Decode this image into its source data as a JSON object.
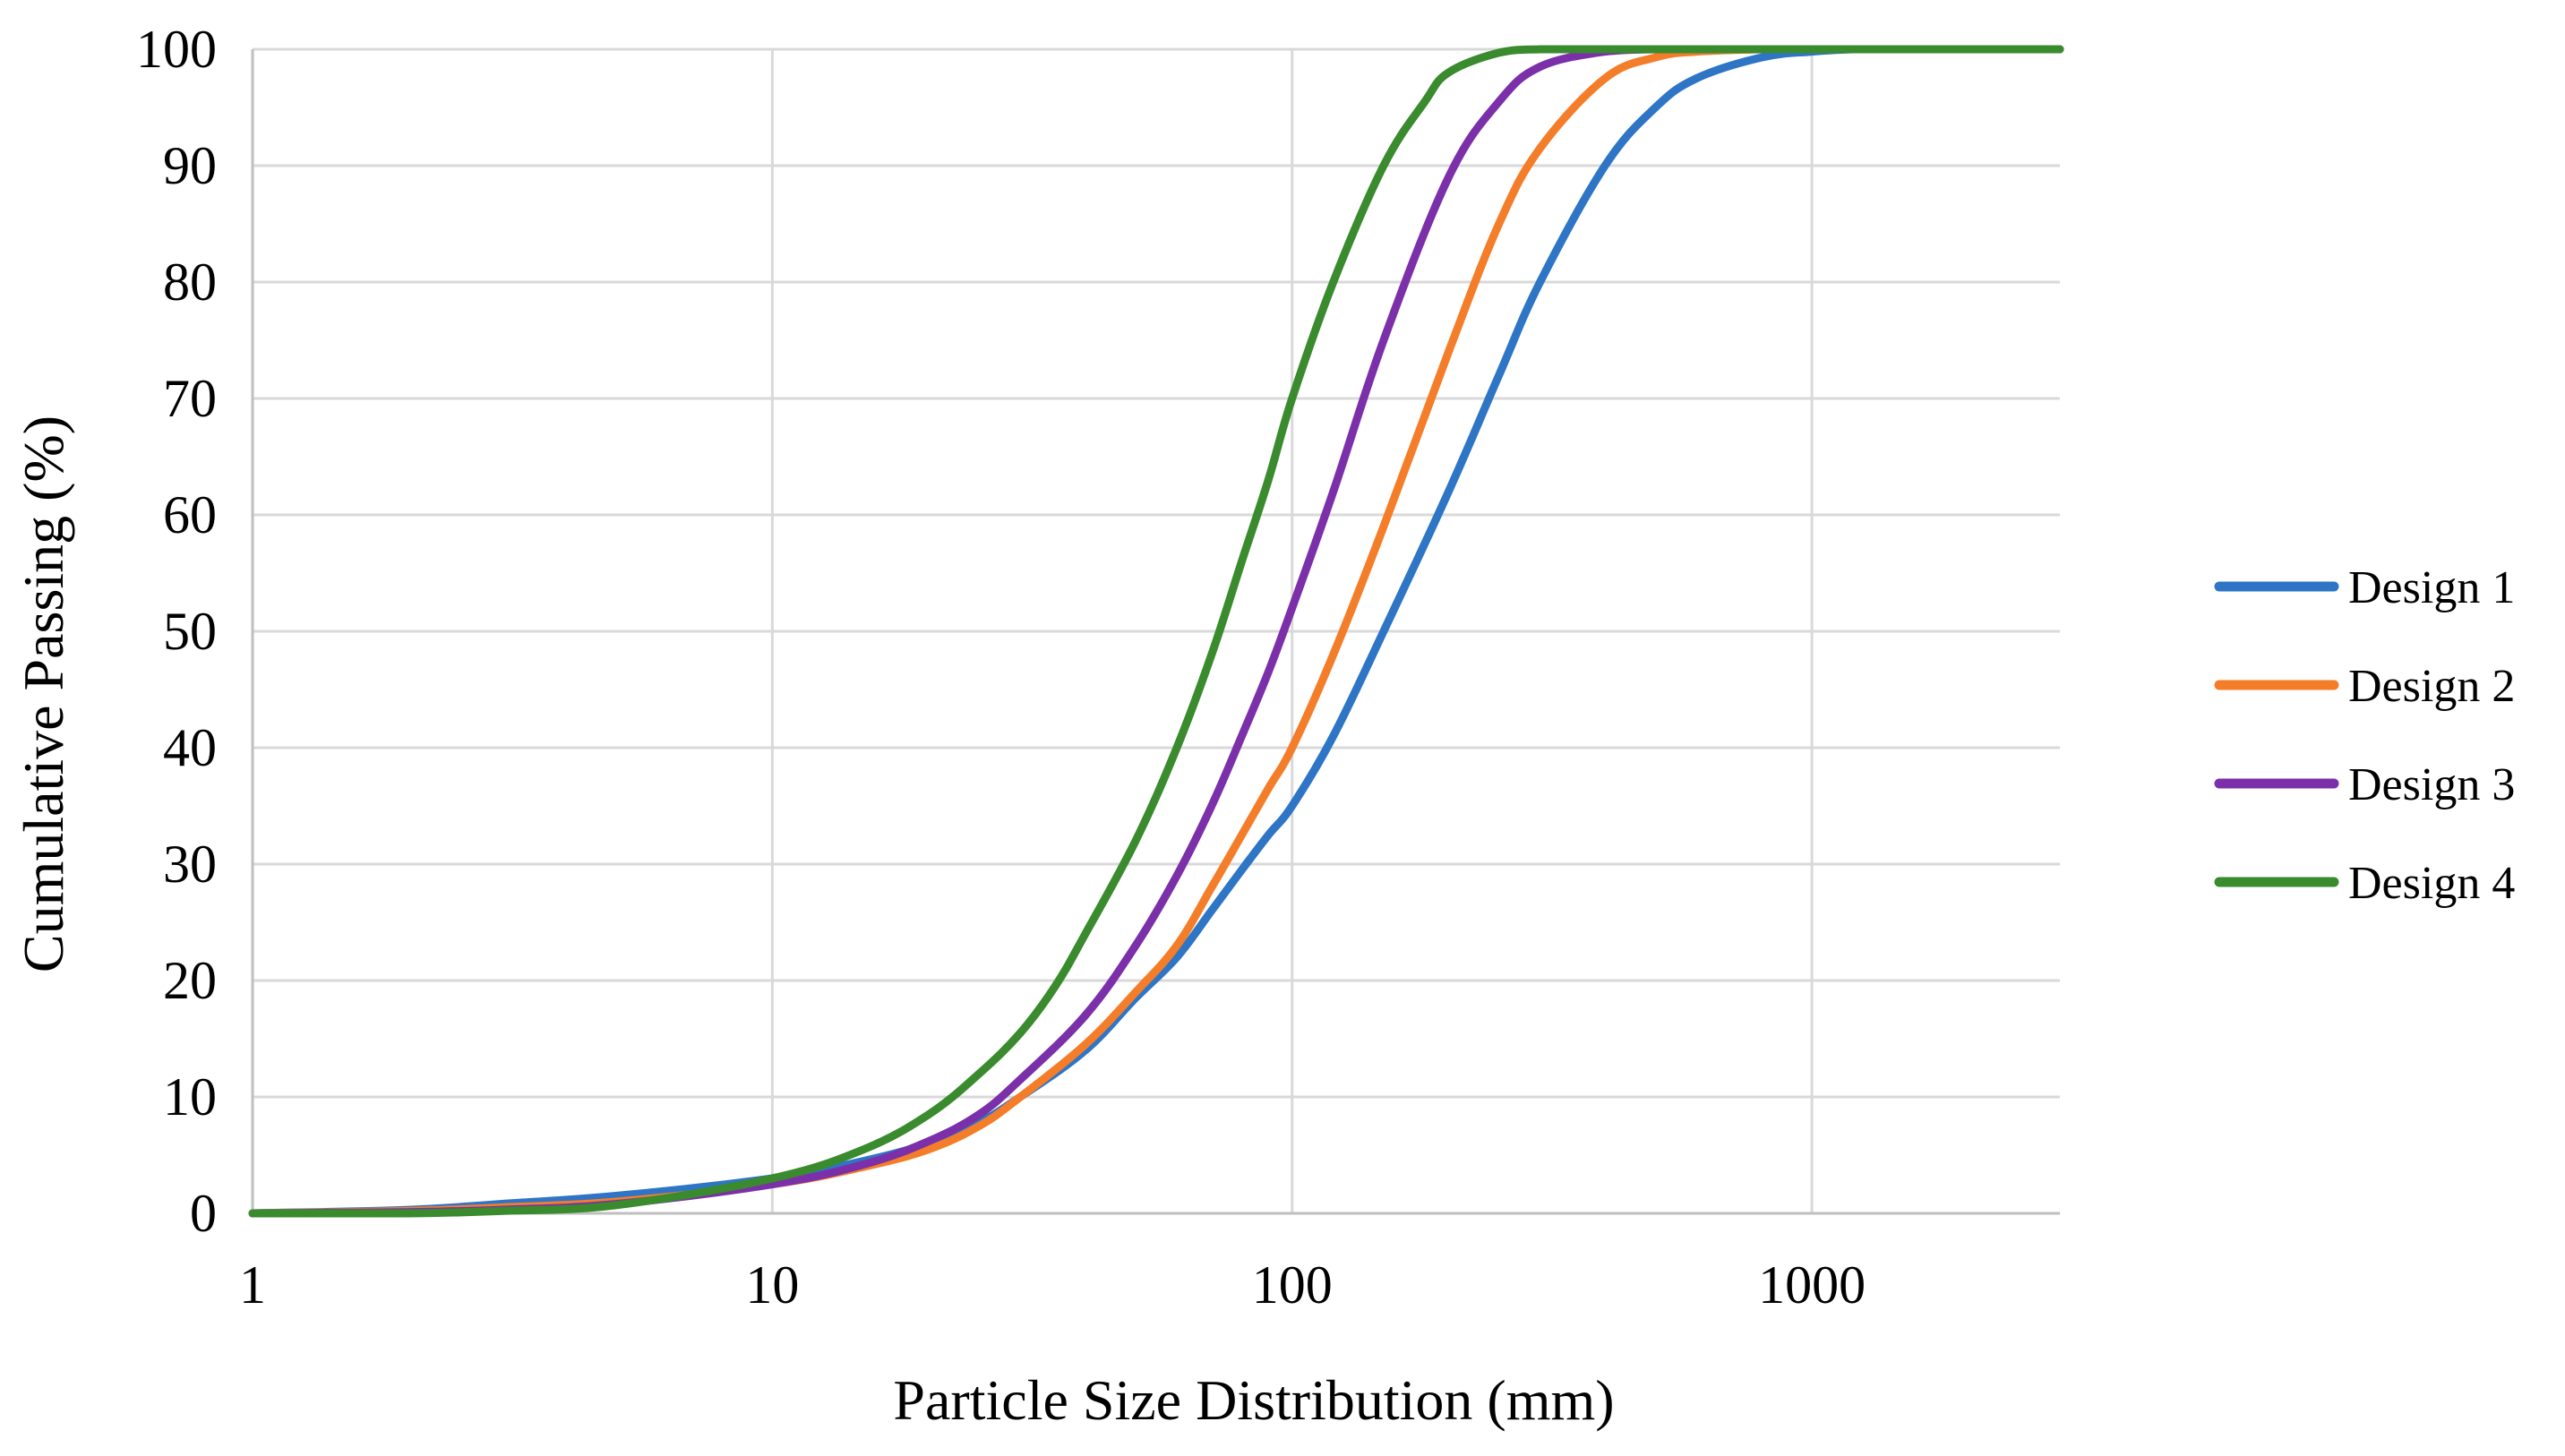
{
  "chart_data": {
    "type": "line",
    "title": "",
    "xlabel": "Particle Size Distribution (mm)",
    "ylabel": "Cumulative Passing (%)",
    "xscale": "log",
    "xlim": [
      1,
      3000
    ],
    "ylim": [
      0,
      100
    ],
    "x_ticks": [
      1,
      10,
      100,
      1000
    ],
    "x_tick_labels": [
      "1",
      "10",
      "100",
      "1000"
    ],
    "y_ticks": [
      0,
      10,
      20,
      30,
      40,
      50,
      60,
      70,
      80,
      90,
      100
    ],
    "y_tick_labels": [
      "0",
      "10",
      "20",
      "30",
      "40",
      "50",
      "60",
      "70",
      "80",
      "90",
      "100"
    ],
    "grid": true,
    "legend_position": "right",
    "series": [
      {
        "name": "Design 1",
        "color": "#2e75c6",
        "x": [
          1,
          2,
          3,
          5,
          10,
          15,
          20,
          25,
          30,
          40,
          50,
          60,
          70,
          80,
          90,
          100,
          120,
          150,
          200,
          250,
          300,
          400,
          500,
          600,
          800,
          1000,
          1200,
          1500,
          2000,
          3000
        ],
        "y": [
          0,
          0.3,
          0.8,
          1.5,
          3,
          4.5,
          6,
          7.8,
          10,
          14,
          18.5,
          22,
          26,
          29.5,
          32.5,
          35,
          41,
          50,
          62,
          72,
          80,
          90,
          95,
          97.5,
          99.3,
          99.8,
          100,
          100,
          100,
          100
        ]
      },
      {
        "name": "Design 2",
        "color": "#f47d2a",
        "x": [
          1,
          2,
          3,
          5,
          10,
          15,
          20,
          25,
          30,
          40,
          50,
          60,
          70,
          80,
          90,
          100,
          120,
          150,
          200,
          250,
          300,
          400,
          500,
          600,
          800,
          1000,
          1500,
          2000,
          3000
        ],
        "y": [
          0,
          0.2,
          0.5,
          1,
          2.5,
          4,
          5.5,
          7.5,
          10,
          14.5,
          19,
          23,
          28,
          32.5,
          36.5,
          40,
          48,
          59,
          74,
          85,
          91.5,
          97.5,
          99.3,
          99.8,
          100,
          100,
          100,
          100,
          100
        ]
      },
      {
        "name": "Design 3",
        "color": "#7b2fa8",
        "x": [
          1,
          2,
          3,
          5,
          10,
          15,
          20,
          25,
          30,
          40,
          50,
          60,
          70,
          80,
          90,
          100,
          120,
          150,
          200,
          250,
          300,
          400,
          500,
          600,
          1000,
          2000,
          3000
        ],
        "y": [
          0,
          0.1,
          0.3,
          0.8,
          2.5,
          4.2,
          6.2,
          8.5,
          11.5,
          17,
          23,
          29,
          35,
          41,
          46.5,
          52,
          62,
          75,
          89,
          95.5,
          98.5,
          99.8,
          100,
          100,
          100,
          100,
          100
        ]
      },
      {
        "name": "Design 4",
        "color": "#3a8a2e",
        "x": [
          1,
          2,
          3,
          5,
          10,
          15,
          20,
          25,
          30,
          35,
          40,
          50,
          60,
          70,
          80,
          90,
          100,
          120,
          150,
          180,
          200,
          250,
          300,
          400,
          1000,
          2000,
          3000
        ],
        "y": [
          0,
          0,
          0.2,
          0.7,
          3,
          5.5,
          8.5,
          12,
          15.5,
          19.5,
          24,
          32,
          40,
          48,
          56,
          63,
          70,
          80,
          90,
          95.5,
          98,
          99.7,
          100,
          100,
          100,
          100,
          100
        ]
      }
    ]
  }
}
